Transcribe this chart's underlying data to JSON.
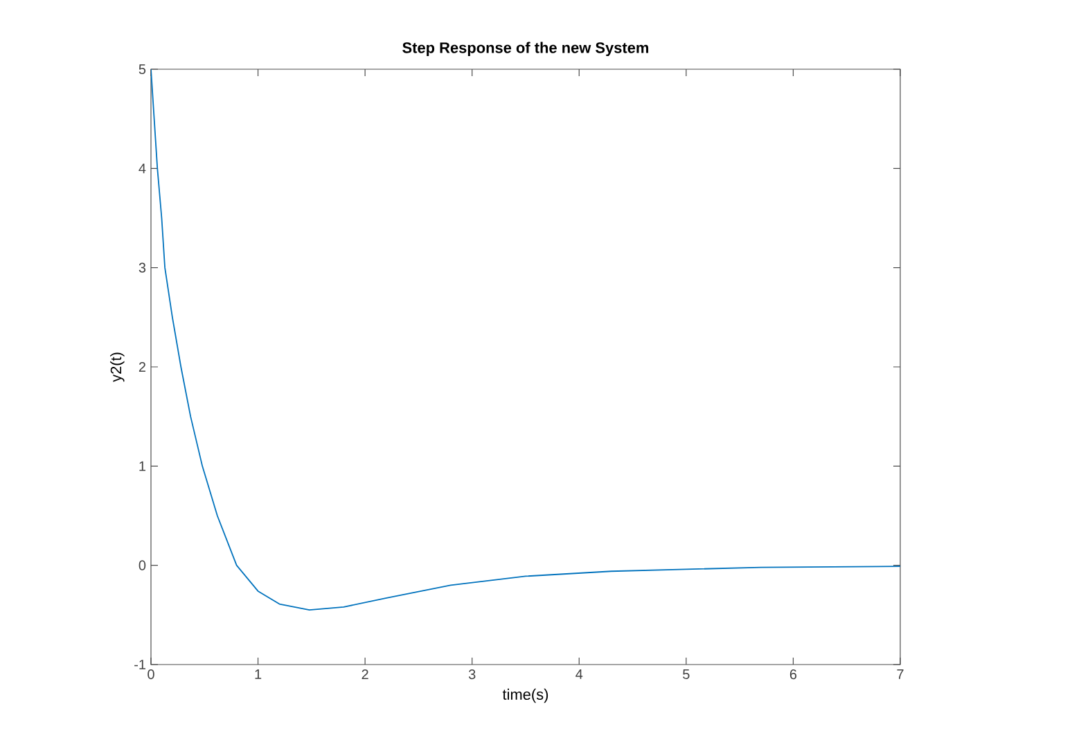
{
  "chart_data": {
    "type": "line",
    "title": "Step Response of the new System",
    "xlabel": "time(s)",
    "ylabel": "y2(t)",
    "series": [
      {
        "color": "#0072bd",
        "x": [
          0,
          0.03,
          0.06,
          0.1,
          0.13,
          0.2,
          0.28,
          0.37,
          0.48,
          0.62,
          0.8,
          1.0,
          1.2,
          1.48,
          1.8,
          2.2,
          2.8,
          3.5,
          4.3,
          5.0,
          5.7,
          7
        ],
        "values": [
          5,
          4.5,
          4,
          3.5,
          3,
          2.5,
          2,
          1.5,
          1,
          0.5,
          0,
          -0.26,
          -0.39,
          -0.45,
          -0.42,
          -0.33,
          -0.2,
          -0.11,
          -0.06,
          -0.04,
          -0.02,
          -0.01
        ]
      }
    ],
    "xlim": [
      0,
      7
    ],
    "ylim": [
      -1,
      5
    ],
    "xticks": [
      0,
      1,
      2,
      3,
      4,
      5,
      6,
      7
    ],
    "yticks": [
      -1,
      0,
      1,
      2,
      3,
      4,
      5
    ],
    "grid": false,
    "marker": "none",
    "line_style": "solid"
  }
}
